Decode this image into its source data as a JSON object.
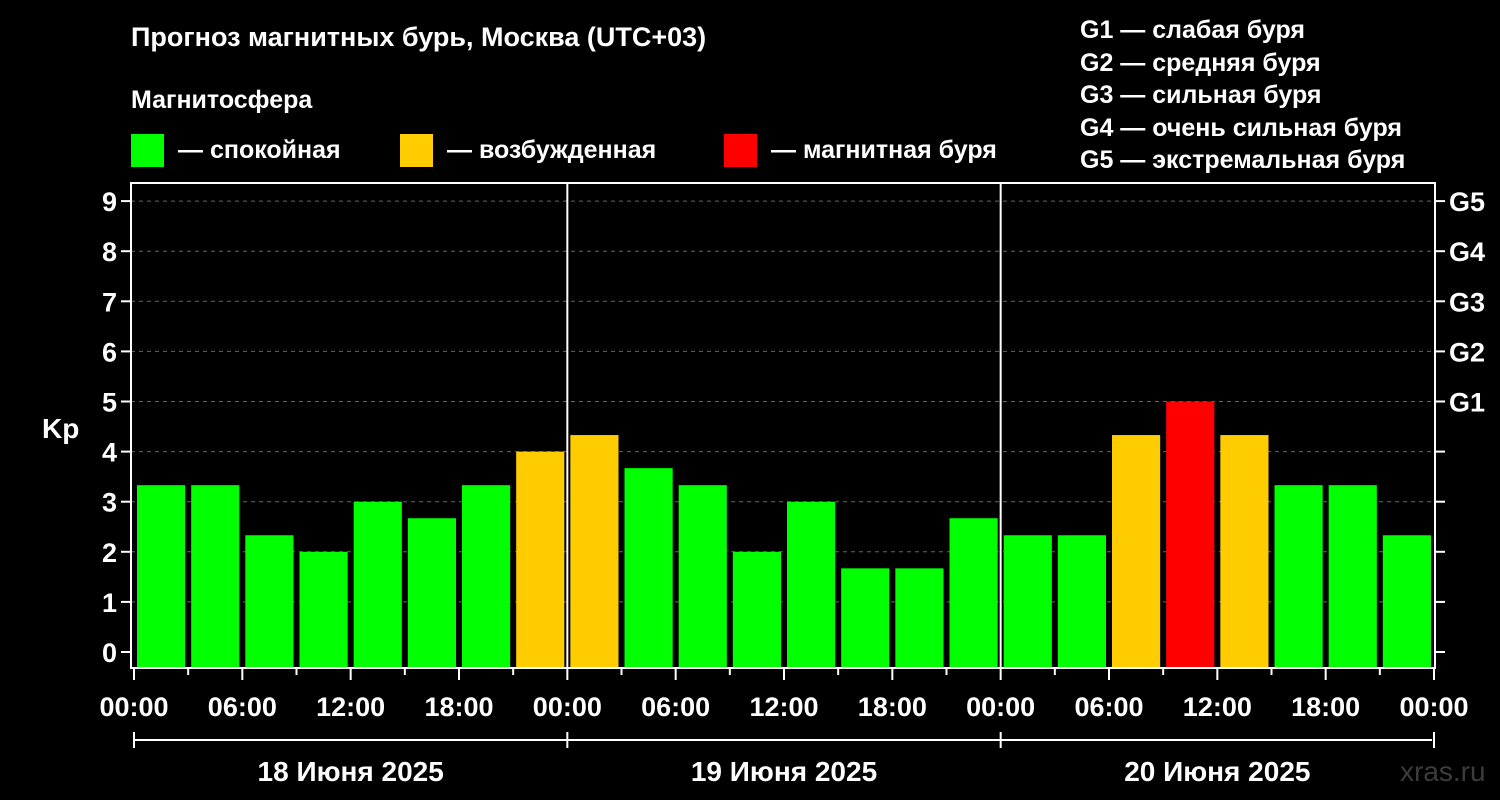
{
  "title": "Прогноз магнитных бурь, Москва (UTC+03)",
  "subtitle": "Магнитосфера",
  "legend": [
    {
      "label": "— спокойная",
      "color": "#00ff00"
    },
    {
      "label": "— возбужденная",
      "color": "#ffcc00"
    },
    {
      "label": "— магнитная буря",
      "color": "#ff0000"
    }
  ],
  "g_scale": [
    "G1 — слабая буря",
    "G2 — средняя буря",
    "G3 — сильная буря",
    "G4 — очень сильная буря",
    "G5 — экстремальная буря"
  ],
  "watermark": "xras.ru",
  "chart_data": {
    "type": "bar",
    "ylabel": "Kp",
    "ylim": [
      0,
      9
    ],
    "yticks": [
      "0",
      "1",
      "2",
      "3",
      "4",
      "5",
      "6",
      "7",
      "8",
      "9"
    ],
    "right_axis": [
      {
        "kp": 5,
        "label": "G1"
      },
      {
        "kp": 6,
        "label": "G2"
      },
      {
        "kp": 7,
        "label": "G3"
      },
      {
        "kp": 8,
        "label": "G4"
      },
      {
        "kp": 9,
        "label": "G5"
      }
    ],
    "grid": "dashed horizontal",
    "xtick_labels": [
      "00:00",
      "06:00",
      "12:00",
      "18:00",
      "00:00",
      "06:00",
      "12:00",
      "18:00",
      "00:00",
      "06:00",
      "12:00",
      "18:00",
      "00:00"
    ],
    "days": [
      "18 Июня 2025",
      "19 Июня 2025",
      "20 Июня 2025"
    ],
    "interval_hours": 3,
    "values": [
      3.33,
      3.33,
      2.33,
      2.0,
      3.0,
      2.67,
      3.33,
      4.0,
      4.33,
      3.67,
      3.33,
      2.0,
      3.0,
      1.67,
      1.67,
      2.67,
      2.33,
      2.33,
      4.33,
      5.0,
      4.33,
      3.33,
      3.33,
      2.33
    ],
    "colors": {
      "quiet": "#00ff00",
      "active": "#ffcc00",
      "storm": "#ff0000"
    }
  }
}
